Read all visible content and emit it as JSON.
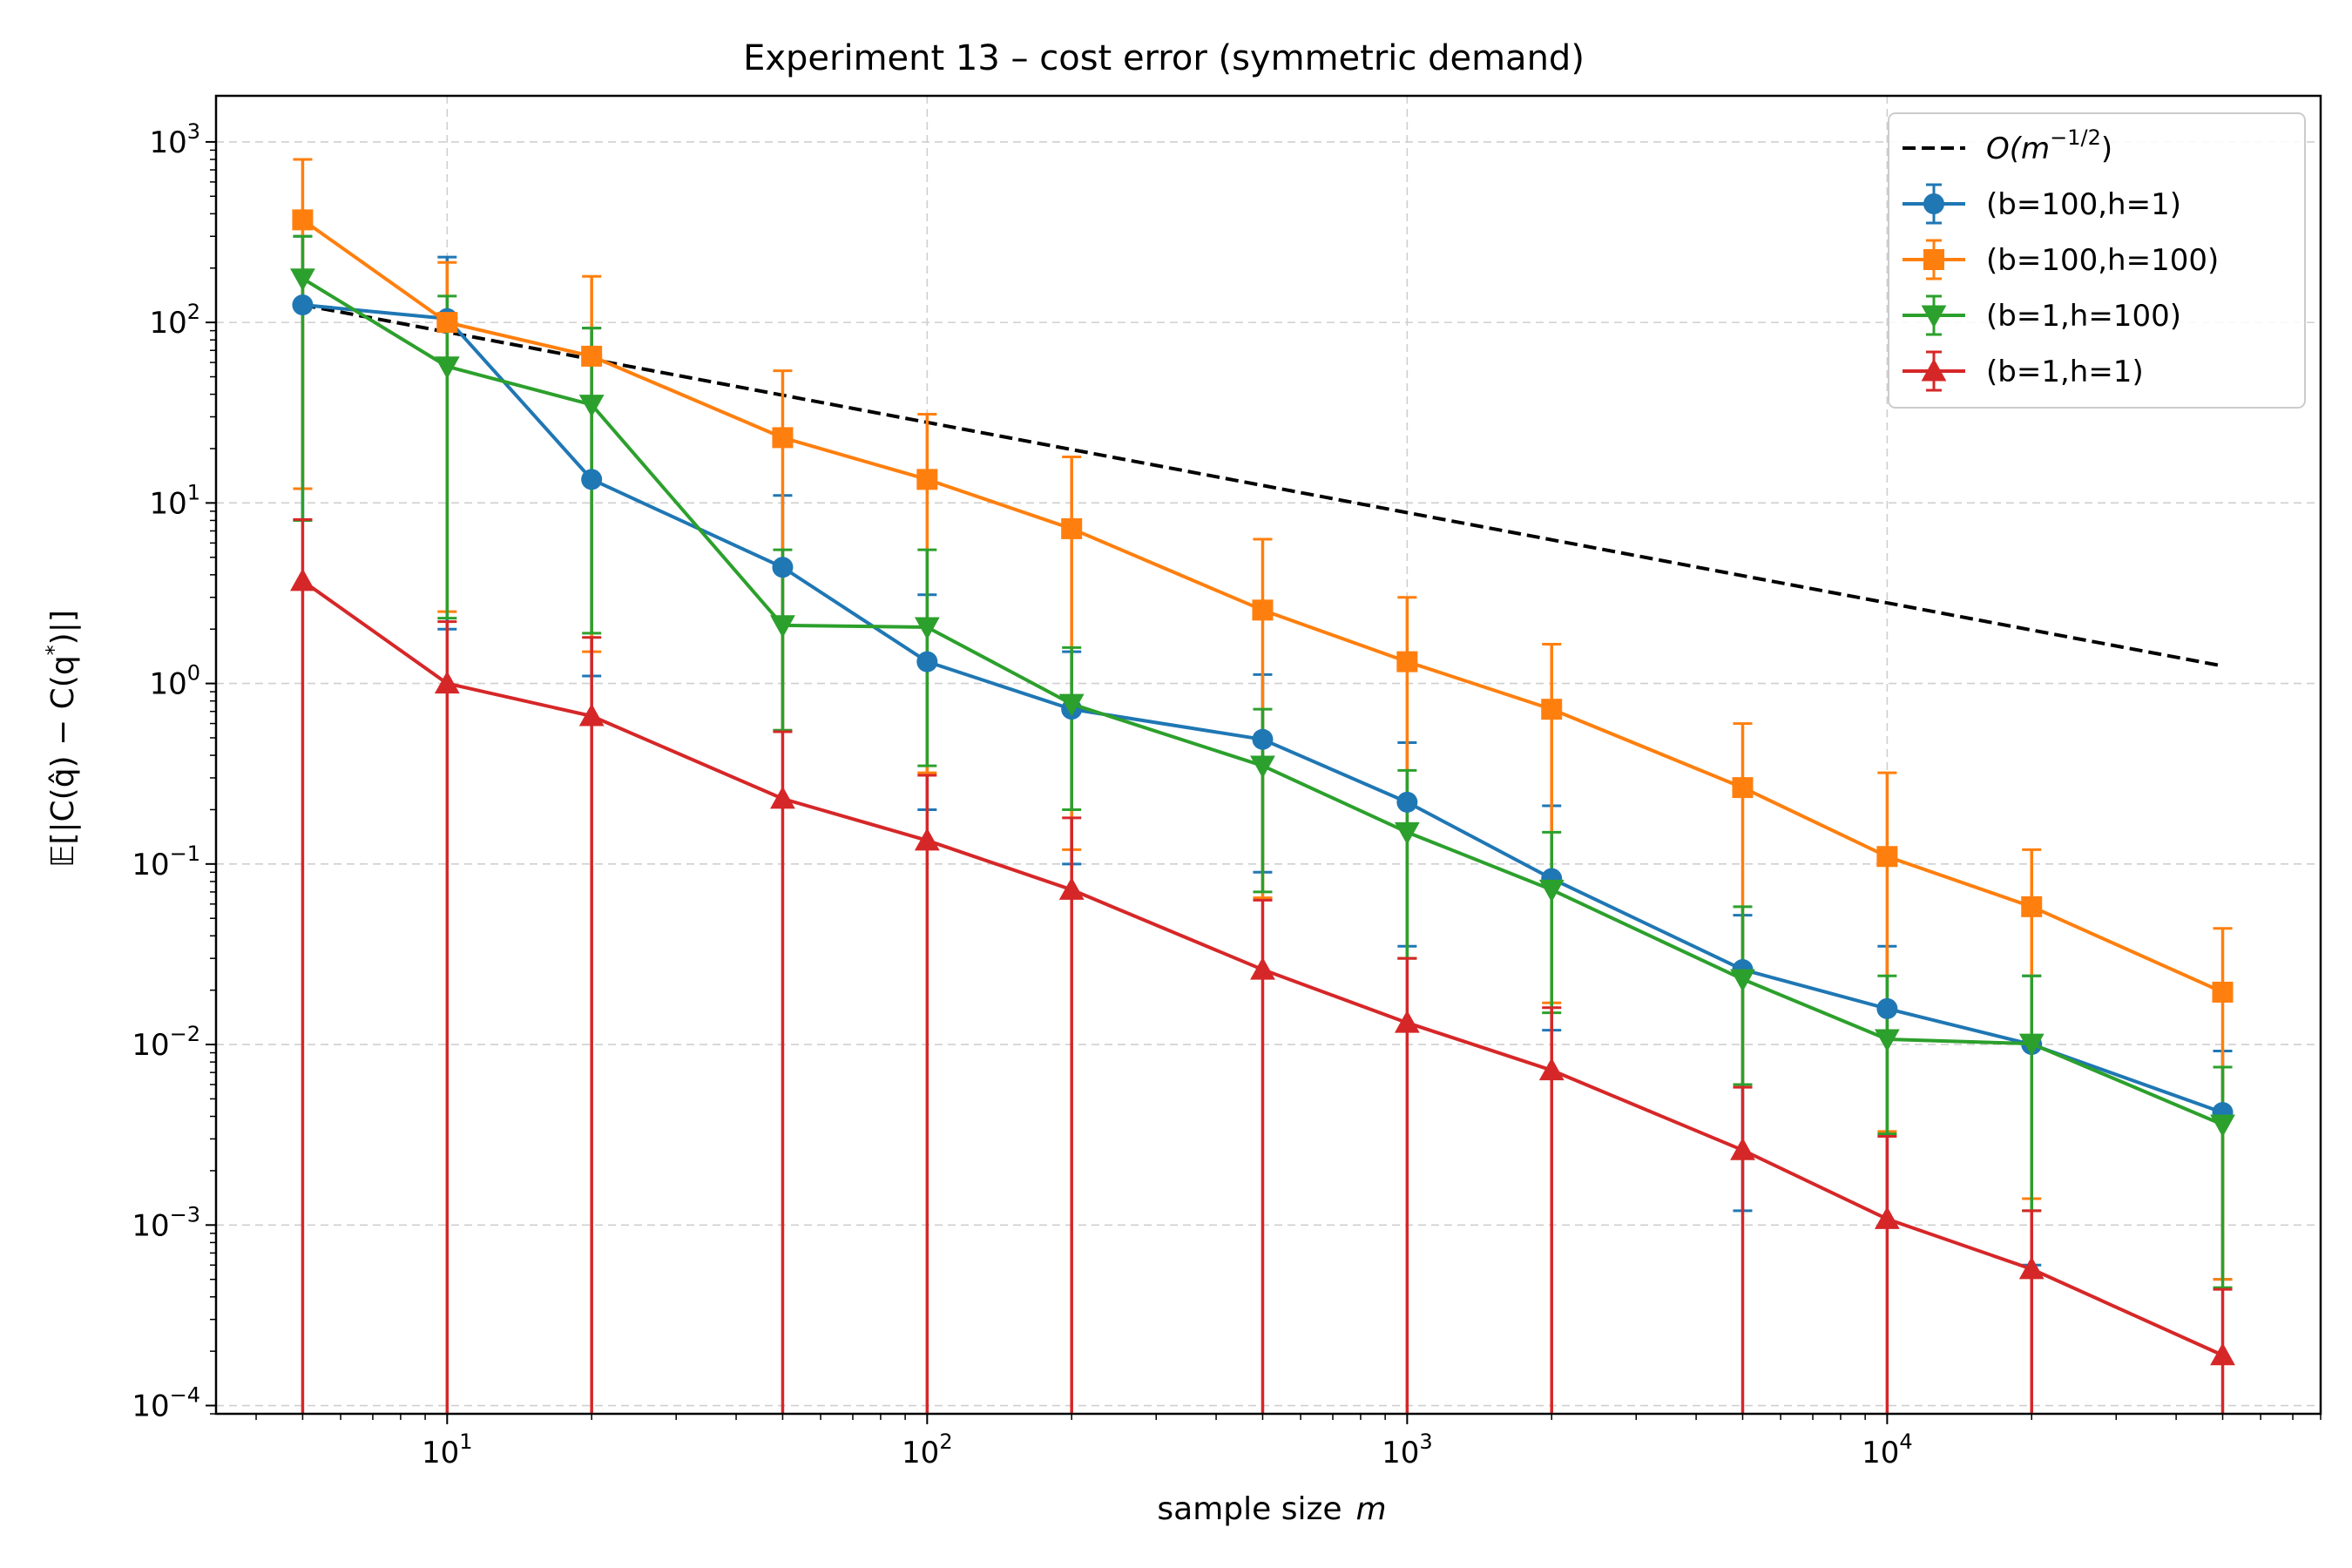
{
  "chart_data": {
    "type": "line",
    "title": "Experiment 13 – cost error (symmetric demand)",
    "xlabel": "sample size",
    "xlabel_var": "m",
    "ylabel_parts": [
      "𝔼[|C(q̂) − C(q",
      "*",
      ")|]"
    ],
    "xscale": "log",
    "yscale": "log",
    "xlim": [
      3.3,
      80000
    ],
    "ylim": [
      9e-05,
      1800
    ],
    "x_ticks": [
      {
        "value": 10,
        "label": "10",
        "exp": "1"
      },
      {
        "value": 100,
        "label": "10",
        "exp": "2"
      },
      {
        "value": 1000,
        "label": "10",
        "exp": "3"
      },
      {
        "value": 10000,
        "label": "10",
        "exp": "4"
      }
    ],
    "y_ticks": [
      {
        "value": 0.0001,
        "label": "10",
        "exp": "−4"
      },
      {
        "value": 0.001,
        "label": "10",
        "exp": "−3"
      },
      {
        "value": 0.01,
        "label": "10",
        "exp": "−2"
      },
      {
        "value": 0.1,
        "label": "10",
        "exp": "−1"
      },
      {
        "value": 1,
        "label": "10",
        "exp": "0"
      },
      {
        "value": 10,
        "label": "10",
        "exp": "1"
      },
      {
        "value": 100,
        "label": "10",
        "exp": "2"
      },
      {
        "value": 1000,
        "label": "10",
        "exp": "3"
      }
    ],
    "grid": true,
    "legend_position": "top-right",
    "reference_line": {
      "name_prefix": "O(m",
      "name_exp": "−1/2",
      "name_suffix": ")",
      "color": "#000000",
      "x": [
        5,
        50000
      ],
      "y": [
        125,
        1.25
      ]
    },
    "x": [
      5,
      10,
      20,
      50,
      100,
      200,
      500,
      1000,
      2000,
      5000,
      10000,
      20000,
      50000
    ],
    "series": [
      {
        "name": "(b=100,h=1)",
        "color": "#1f77b4",
        "marker": "circle",
        "values": [
          125,
          105,
          13.5,
          4.4,
          1.32,
          0.72,
          0.49,
          0.22,
          0.083,
          0.026,
          0.0158,
          0.01,
          0.0042
        ],
        "err_upper": [
          300,
          230,
          93,
          11,
          3.1,
          1.5,
          1.12,
          0.47,
          0.21,
          0.052,
          0.035,
          0.024,
          0.0092
        ],
        "err_lower": [
          8,
          2,
          1.1,
          0.55,
          0.2,
          0.1,
          0.09,
          0.035,
          0.012,
          0.0012,
          0.001,
          0.0006,
          0.0005
        ]
      },
      {
        "name": "(b=100,h=100)",
        "color": "#ff7f0e",
        "marker": "square",
        "values": [
          370,
          100,
          65,
          23,
          13.5,
          7.2,
          2.55,
          1.32,
          0.72,
          0.265,
          0.11,
          0.058,
          0.0195
        ],
        "err_upper": [
          800,
          215,
          180,
          54,
          31,
          18,
          6.3,
          3,
          1.65,
          0.6,
          0.32,
          0.12,
          0.044
        ],
        "err_lower": [
          12,
          2.5,
          1.5,
          0.55,
          0.32,
          0.12,
          0.065,
          0.03,
          0.017,
          0.006,
          0.0033,
          0.0014,
          0.0005
        ]
      },
      {
        "name": "(b=1,h=100)",
        "color": "#2ca02c",
        "marker": "triangle-down",
        "values": [
          175,
          57,
          35,
          2.1,
          2.05,
          0.77,
          0.35,
          0.15,
          0.072,
          0.023,
          0.0107,
          0.0101,
          0.0036
        ],
        "err_upper": [
          300,
          140,
          93,
          5.5,
          5.5,
          1.58,
          0.72,
          0.33,
          0.15,
          0.058,
          0.024,
          0.024,
          0.0075
        ],
        "err_lower": [
          8,
          2.3,
          1.9,
          0.55,
          0.35,
          0.2,
          0.07,
          0.03,
          0.015,
          0.006,
          0.0032,
          0.0012,
          0.00045
        ]
      },
      {
        "name": "(b=1,h=1)",
        "color": "#d62728",
        "marker": "triangle-up",
        "values": [
          3.7,
          1.0,
          0.66,
          0.23,
          0.135,
          0.072,
          0.026,
          0.0132,
          0.0072,
          0.0026,
          0.00108,
          0.00057,
          0.00019
        ],
        "err_upper": [
          8.1,
          2.2,
          1.8,
          0.54,
          0.31,
          0.18,
          0.063,
          0.03,
          0.016,
          0.0058,
          0.0031,
          0.0012,
          0.00044
        ],
        "err_lower": [
          8e-05,
          8e-05,
          8e-05,
          8e-05,
          8e-05,
          8e-05,
          8e-05,
          8e-05,
          8e-05,
          8e-05,
          8e-05,
          8e-05,
          8e-05
        ]
      }
    ]
  }
}
